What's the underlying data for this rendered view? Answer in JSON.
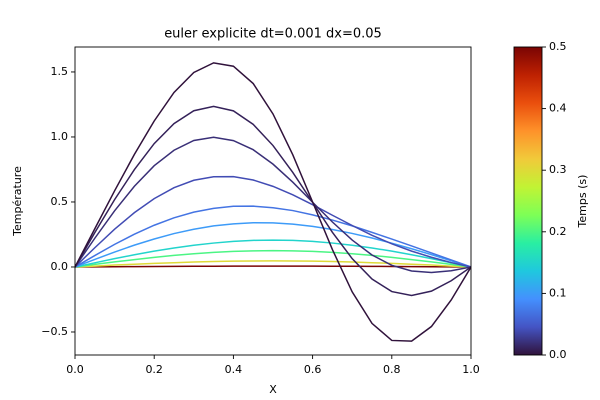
{
  "chart_data": {
    "type": "line",
    "title": "euler explicite dt=0.001 dx=0.05",
    "xlabel": "X",
    "ylabel": "Température",
    "x": [
      0,
      0.05,
      0.1,
      0.15,
      0.2,
      0.25,
      0.3,
      0.35,
      0.4,
      0.45,
      0.5,
      0.55,
      0.6,
      0.65,
      0.7,
      0.75,
      0.8,
      0.85,
      0.9,
      0.95,
      1
    ],
    "xlim": [
      0,
      1
    ],
    "xticks": [
      {
        "value": 0,
        "label": "0.0"
      },
      {
        "value": 0.2,
        "label": "0.2"
      },
      {
        "value": 0.4,
        "label": "0.4"
      },
      {
        "value": 0.6,
        "label": "0.6"
      },
      {
        "value": 0.8,
        "label": "0.8"
      },
      {
        "value": 1,
        "label": "1.0"
      }
    ],
    "ylim": [
      -0.677,
      1.692
    ],
    "yticks": [
      {
        "value": -0.5,
        "label": "−0.5"
      },
      {
        "value": 0,
        "label": "0.0"
      },
      {
        "value": 0.5,
        "label": "0.5"
      },
      {
        "value": 1,
        "label": "1.0"
      },
      {
        "value": 1.5,
        "label": "1.5"
      }
    ],
    "colormap": "turbo",
    "colorbar": {
      "label": "Temps (s)",
      "lim": [
        0,
        0.5
      ],
      "ticks": [
        {
          "value": 0,
          "label": "0.0"
        },
        {
          "value": 0.1,
          "label": "0.1"
        },
        {
          "value": 0.2,
          "label": "0.2"
        },
        {
          "value": 0.3,
          "label": "0.3"
        },
        {
          "value": 0.4,
          "label": "0.4"
        },
        {
          "value": 0.5,
          "label": "0.5"
        }
      ]
    },
    "series": [
      {
        "time": 0.5,
        "values": [
          0,
          0.001,
          0.002,
          0.003,
          0.004,
          0.005,
          0.006,
          0.006,
          0.007,
          0.007,
          0.007,
          0.007,
          0.007,
          0.006,
          0.006,
          0.005,
          0.004,
          0.003,
          0.002,
          0.001,
          0
        ]
      },
      {
        "time": 0.3,
        "values": [
          0,
          0.007,
          0.015,
          0.021,
          0.028,
          0.033,
          0.038,
          0.042,
          0.045,
          0.046,
          0.047,
          0.046,
          0.045,
          0.042,
          0.038,
          0.033,
          0.028,
          0.021,
          0.015,
          0.007,
          0
        ]
      },
      {
        "time": 0.2,
        "values": [
          0,
          0.02,
          0.039,
          0.057,
          0.074,
          0.089,
          0.102,
          0.112,
          0.12,
          0.124,
          0.126,
          0.124,
          0.12,
          0.112,
          0.102,
          0.089,
          0.074,
          0.057,
          0.039,
          0.02,
          0
        ]
      },
      {
        "time": 0.15,
        "values": [
          0,
          0.032,
          0.064,
          0.094,
          0.122,
          0.146,
          0.167,
          0.184,
          0.197,
          0.205,
          0.207,
          0.205,
          0.197,
          0.184,
          0.167,
          0.146,
          0.122,
          0.094,
          0.064,
          0.032,
          0
        ]
      },
      {
        "time": 0.1,
        "values": [
          0,
          0.058,
          0.115,
          0.168,
          0.215,
          0.257,
          0.29,
          0.316,
          0.332,
          0.34,
          0.339,
          0.33,
          0.312,
          0.288,
          0.258,
          0.223,
          0.183,
          0.14,
          0.095,
          0.048,
          0
        ]
      },
      {
        "time": 0.07,
        "values": [
          0,
          0.088,
          0.174,
          0.252,
          0.321,
          0.378,
          0.422,
          0.451,
          0.467,
          0.468,
          0.456,
          0.434,
          0.401,
          0.361,
          0.316,
          0.266,
          0.215,
          0.162,
          0.108,
          0.054,
          0
        ]
      },
      {
        "time": 0.04,
        "values": [
          0,
          0.148,
          0.291,
          0.418,
          0.526,
          0.61,
          0.667,
          0.694,
          0.695,
          0.669,
          0.62,
          0.555,
          0.479,
          0.398,
          0.319,
          0.244,
          0.178,
          0.122,
          0.075,
          0.034,
          0
        ]
      },
      {
        "time": 0.02,
        "values": [
          0,
          0.221,
          0.432,
          0.621,
          0.779,
          0.898,
          0.973,
          0.998,
          0.972,
          0.902,
          0.791,
          0.652,
          0.498,
          0.346,
          0.207,
          0.092,
          0.013,
          -0.031,
          -0.042,
          -0.029,
          0
        ]
      },
      {
        "time": 0.01,
        "values": [
          0,
          0.264,
          0.518,
          0.749,
          0.949,
          1.103,
          1.202,
          1.235,
          1.201,
          1.097,
          0.934,
          0.727,
          0.497,
          0.267,
          0.064,
          -0.093,
          -0.189,
          -0.219,
          -0.186,
          -0.106,
          0
        ]
      },
      {
        "time": 0,
        "values": [
          0,
          0.294,
          0.586,
          0.866,
          1.123,
          1.342,
          1.496,
          1.57,
          1.544,
          1.411,
          1.177,
          0.863,
          0.5,
          0.134,
          -0.192,
          -0.434,
          -0.565,
          -0.57,
          -0.458,
          -0.254,
          0
        ]
      }
    ]
  }
}
